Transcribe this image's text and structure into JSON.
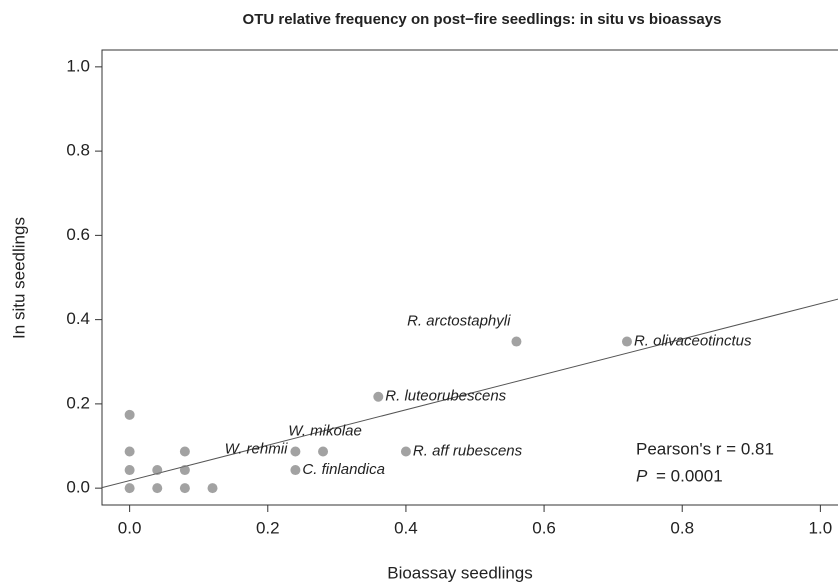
{
  "chart_data": {
    "type": "scatter",
    "title": "OTU relative frequency on post−fire seedlings: in situ vs bioassays",
    "x_label": "Bioassay seedlings",
    "y_label": "In situ seedlings",
    "x": [
      0,
      0,
      0,
      0,
      0.04,
      0.04,
      0.08,
      0.08,
      0.08,
      0.12,
      0.24,
      0.24,
      0.28,
      0.36,
      0.4,
      0.56,
      0.72
    ],
    "values": [
      0,
      0.043,
      0.087,
      0.174,
      0,
      0.043,
      0,
      0.043,
      0.087,
      0,
      0.043,
      0.087,
      0.087,
      0.217,
      0.087,
      0.348,
      0.348
    ],
    "labels": [
      null,
      null,
      null,
      null,
      null,
      null,
      null,
      null,
      null,
      null,
      "C. finlandica",
      "W. rehmii",
      "W. mikolae",
      "R. luteorubescens",
      "R. aff rubescens",
      "R. arctostaphyli",
      "R. olivaceotinctus"
    ],
    "color": "#7a7a7a",
    "trend_line": {
      "intercept": 0.018,
      "slope": 0.42
    },
    "pearson": "Pearson's r = 0.81",
    "p_symbol": "P",
    "p_value": "= 0.0001",
    "xlim": [
      -0.04,
      1.04
    ],
    "ylim": [
      -0.04,
      1.04
    ],
    "xticks": [
      {
        "value": 0,
        "label": "0.0"
      },
      0.2,
      0.4,
      0.6,
      0.8,
      {
        "value": 1,
        "label": "1.0"
      }
    ],
    "yticks": [
      {
        "value": 0,
        "label": "0.0"
      },
      0.2,
      0.4,
      0.6,
      0.8,
      {
        "value": 1,
        "label": "1.0"
      }
    ]
  }
}
